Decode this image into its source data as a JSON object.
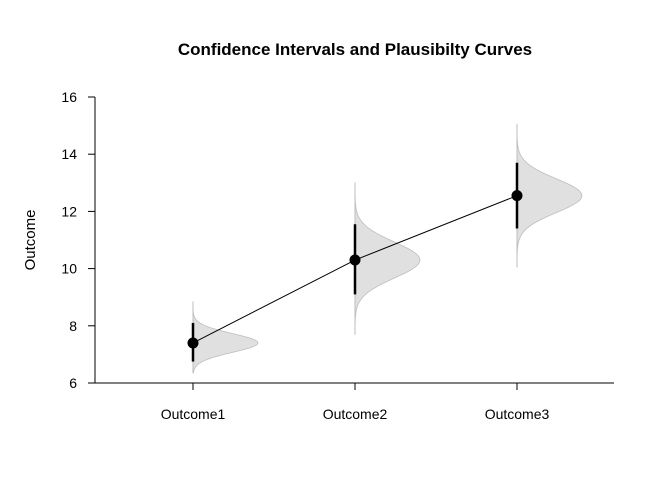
{
  "chart_data": {
    "type": "scatter",
    "title": "Confidence Intervals and Plausibilty Curves",
    "ylabel": "Outcome",
    "xlabel": "",
    "categories": [
      "Outcome1",
      "Outcome2",
      "Outcome3"
    ],
    "ylim": [
      6,
      16
    ],
    "yticks": [
      6,
      8,
      10,
      12,
      14,
      16
    ],
    "grid": false,
    "legend": "none",
    "points": [
      {
        "category": "Outcome1",
        "mean": 7.4,
        "ci_low": 6.75,
        "ci_high": 8.1,
        "curve_low": 6.35,
        "curve_high": 8.85,
        "curve_sd": 0.33
      },
      {
        "category": "Outcome2",
        "mean": 10.3,
        "ci_low": 9.1,
        "ci_high": 11.55,
        "curve_low": 7.7,
        "curve_high": 13.0,
        "curve_sd": 0.63
      },
      {
        "category": "Outcome3",
        "mean": 12.55,
        "ci_low": 11.4,
        "ci_high": 13.7,
        "curve_low": 10.05,
        "curve_high": 15.05,
        "curve_sd": 0.59
      }
    ],
    "colors": {
      "curve_fill": "#e0e0e0",
      "curve_stroke": "#bebebe",
      "point": "#000000",
      "line": "#000000"
    }
  }
}
